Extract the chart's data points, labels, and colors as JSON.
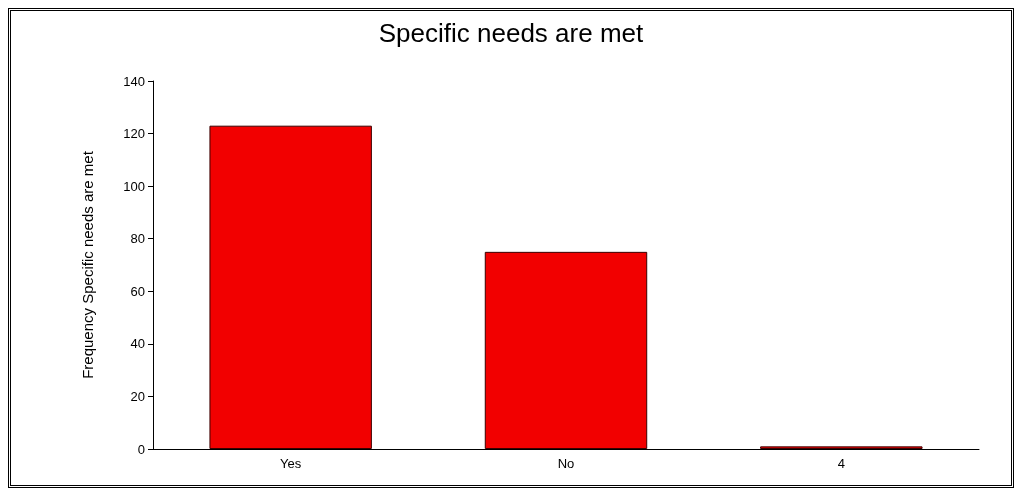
{
  "chart_data": {
    "type": "bar",
    "title": "Specific needs are met",
    "ylabel": "Frequency Specific needs are met",
    "categories": [
      "Yes",
      "No",
      "4"
    ],
    "values": [
      123,
      75,
      1
    ],
    "color": "#f20000",
    "ylim": [
      0,
      140
    ],
    "yticks": [
      0,
      20,
      40,
      60,
      80,
      100,
      120,
      140
    ],
    "grid": false
  }
}
